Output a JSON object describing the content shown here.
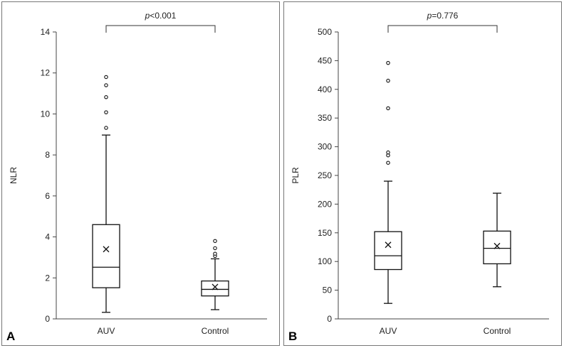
{
  "chart_data": [
    {
      "type": "box",
      "panel_label": "A",
      "ylabel": "NLR",
      "ylim": [
        0,
        14
      ],
      "yticks": [
        0,
        2,
        4,
        6,
        8,
        10,
        12,
        14
      ],
      "ytick_labels": [
        "0",
        "2",
        "4",
        "6",
        "8",
        "10",
        "12",
        "14"
      ],
      "categories": [
        "AUV",
        "Control"
      ],
      "significance": {
        "prefix": "p",
        "suffix": "<0.001"
      },
      "boxes": [
        {
          "name": "AUV",
          "min": 0.32,
          "q1": 1.52,
          "median": 2.52,
          "q3": 4.6,
          "max": 8.97,
          "mean": 3.4,
          "outliers": [
            9.32,
            10.08,
            10.82,
            11.4,
            11.8
          ]
        },
        {
          "name": "Control",
          "min": 0.45,
          "q1": 1.12,
          "median": 1.44,
          "q3": 1.85,
          "max": 2.93,
          "mean": 1.56,
          "outliers": [
            3.07,
            3.18,
            3.45,
            3.8
          ]
        }
      ]
    },
    {
      "type": "box",
      "panel_label": "B",
      "ylabel": "PLR",
      "ylim": [
        0,
        500
      ],
      "yticks": [
        0,
        50,
        100,
        150,
        200,
        250,
        300,
        350,
        400,
        450,
        500
      ],
      "ytick_labels": [
        "0",
        "50",
        "100",
        "150",
        "200",
        "250",
        "300",
        "350",
        "400",
        "450",
        "500"
      ],
      "categories": [
        "AUV",
        "Control"
      ],
      "significance": {
        "prefix": "p",
        "suffix": "=0.776"
      },
      "boxes": [
        {
          "name": "AUV",
          "min": 27,
          "q1": 86,
          "median": 110,
          "q3": 152,
          "max": 240,
          "mean": 129,
          "outliers": [
            272,
            285,
            290,
            367,
            415,
            446
          ]
        },
        {
          "name": "Control",
          "min": 56,
          "q1": 96,
          "median": 123,
          "q3": 153,
          "max": 219,
          "mean": 127,
          "outliers": []
        }
      ]
    }
  ]
}
